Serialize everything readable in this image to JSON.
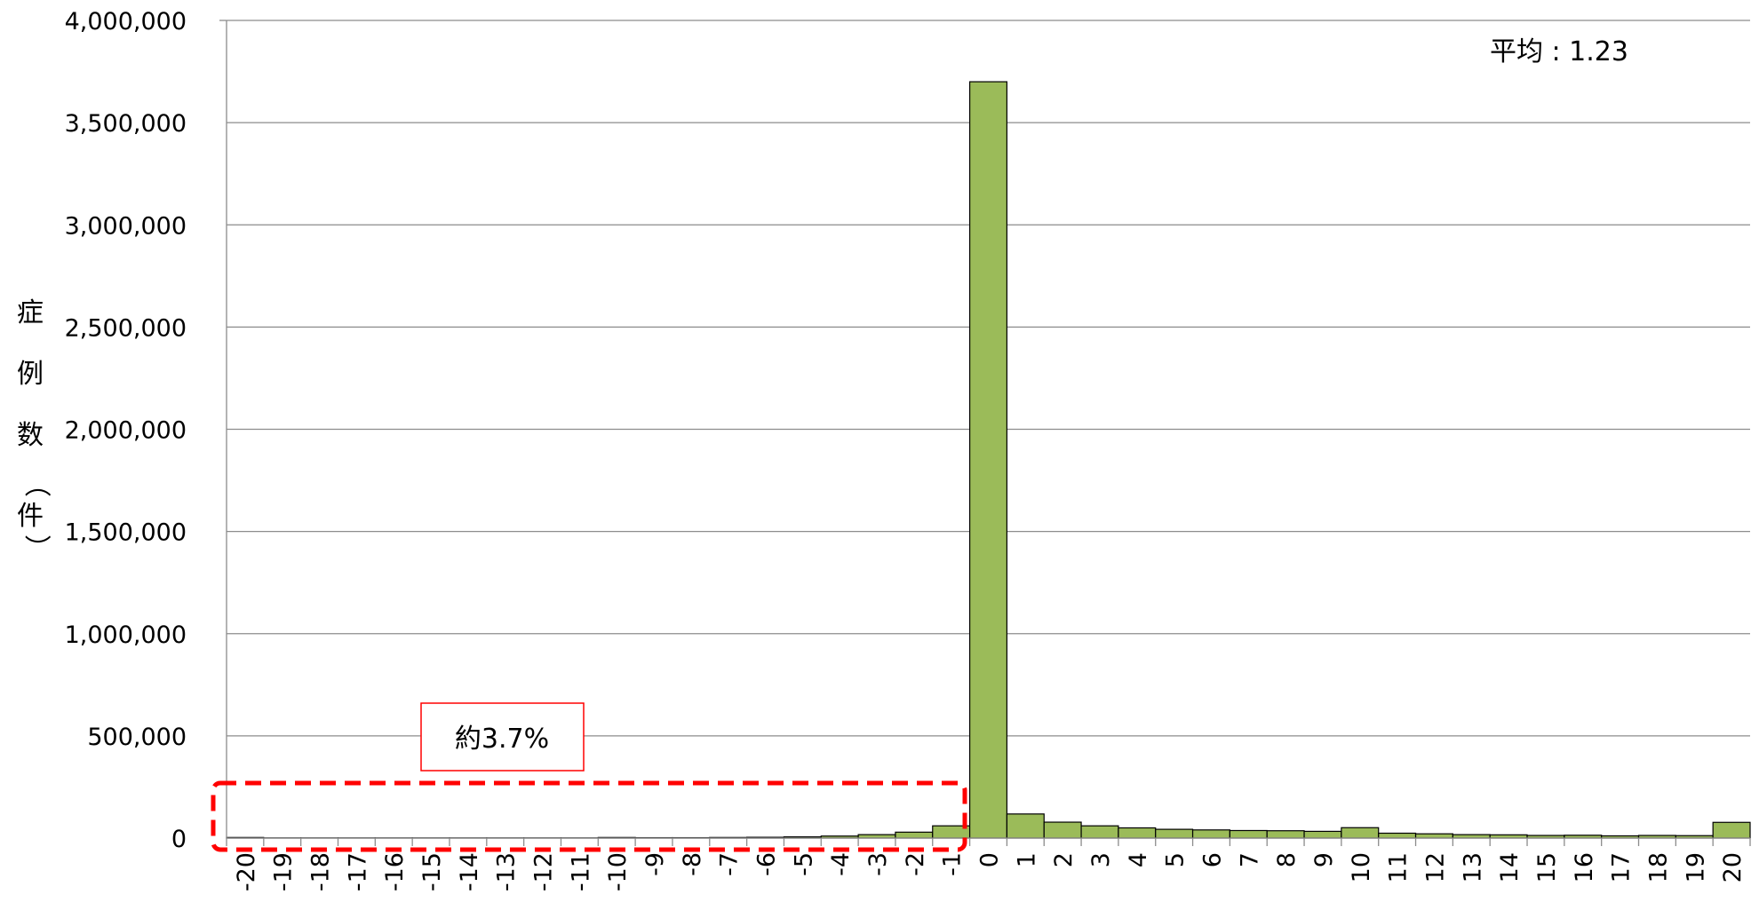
{
  "chart_data": {
    "type": "bar",
    "title": "",
    "xlabel": "",
    "ylabel": "症例数（件）",
    "ylim": [
      0,
      4000000
    ],
    "yticks": [
      0,
      500000,
      1000000,
      1500000,
      2000000,
      2500000,
      3000000,
      3500000,
      4000000
    ],
    "ytick_labels": [
      "0",
      "500,000",
      "1,000,000",
      "1,500,000",
      "2,000,000",
      "2,500,000",
      "3,000,000",
      "3,500,000",
      "4,000,000"
    ],
    "categories": [
      "-20",
      "-19",
      "-18",
      "-17",
      "-16",
      "-15",
      "-14",
      "-13",
      "-12",
      "-11",
      "-10",
      "-9",
      "-8",
      "-7",
      "-6",
      "-5",
      "-4",
      "-3",
      "-2",
      "-1",
      "0",
      "1",
      "2",
      "3",
      "4",
      "5",
      "6",
      "7",
      "8",
      "9",
      "10",
      "11",
      "12",
      "13",
      "14",
      "15",
      "16",
      "17",
      "18",
      "19",
      "20"
    ],
    "values": [
      3000,
      1000,
      1000,
      1000,
      1000,
      1000,
      1000,
      1000,
      1000,
      1000,
      3000,
      2000,
      2000,
      3000,
      4000,
      6000,
      10000,
      17000,
      29000,
      60000,
      3700000,
      118000,
      78000,
      60000,
      50000,
      43000,
      40000,
      37000,
      36000,
      33000,
      51000,
      24000,
      21000,
      17000,
      16000,
      13000,
      14000,
      11000,
      13000,
      12000,
      77000
    ],
    "bar_color": "#9bbb59",
    "bar_edge_color": "#000000",
    "grid": true,
    "annotations": {
      "mean_label": "平均 : 1.23",
      "box_label": "約3.7%",
      "dashed_region_color": "#ff0000"
    }
  }
}
